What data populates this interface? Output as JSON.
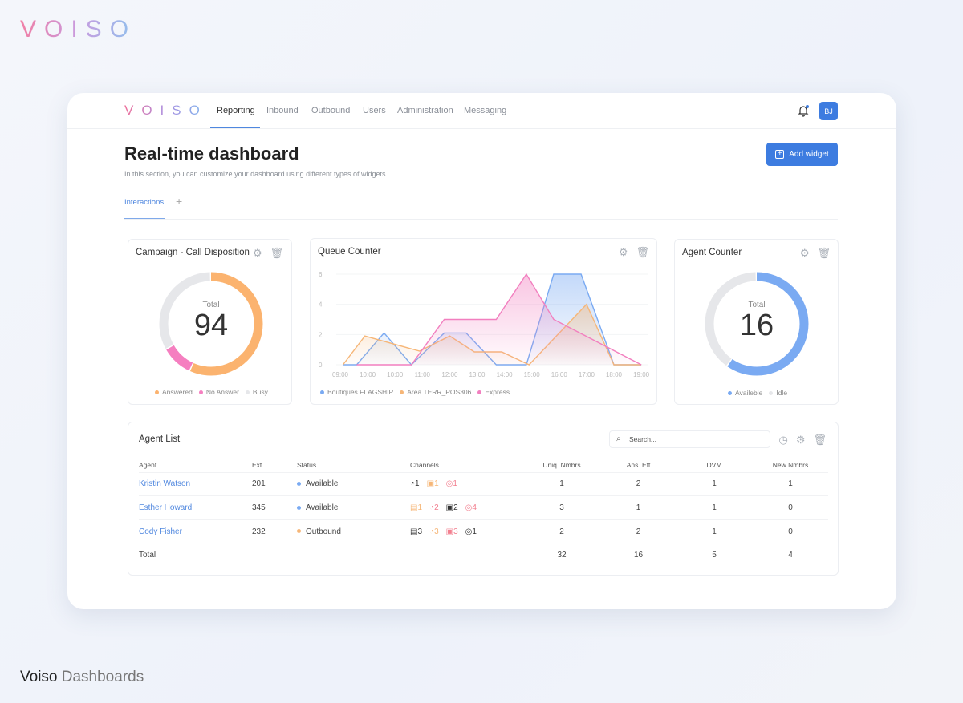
{
  "brand": {
    "logo": "VOISO",
    "caption_bold": "Voiso",
    "caption_light": " Dashboards"
  },
  "nav": {
    "items": [
      "Reporting",
      "Inbound",
      "Outbound",
      "Users",
      "Administration",
      "Messaging"
    ],
    "avatar": "BJ"
  },
  "page": {
    "title": "Real-time dashboard",
    "subtitle": "In this section, you can customize your dashboard using different types of widgets.",
    "add_widget": "Add widget",
    "tab": "Interactions",
    "tab_add": "+"
  },
  "campaign": {
    "title": "Campaign - Call Disposition",
    "total_label": "Total",
    "total": "94",
    "segments": [
      {
        "name": "Answered",
        "fraction": 0.57,
        "color": "#fbb36f"
      },
      {
        "name": "No Answer",
        "fraction": 0.1,
        "color": "#f57fc0"
      },
      {
        "name": "Busy",
        "fraction": 0.33,
        "color": "#e6e7ea"
      }
    ]
  },
  "agent_counter": {
    "title": "Agent Counter",
    "total_label": "Total",
    "total": "16",
    "segments": [
      {
        "name": "Availeble",
        "fraction": 0.6,
        "color": "#7aaaf2"
      },
      {
        "name": "Idle",
        "fraction": 0.4,
        "color": "#e6e7ea"
      }
    ]
  },
  "chart_data": {
    "type": "area",
    "title": "Queue Counter",
    "categories": [
      "09:00",
      "10:00",
      "10:00",
      "11:00",
      "12:00",
      "13:00",
      "14:00",
      "15:00",
      "16:00",
      "17:00",
      "18:00",
      "19:00"
    ],
    "yticks": [
      "0",
      "2",
      "4",
      "6"
    ],
    "ylim": [
      0,
      6.5
    ],
    "series": [
      {
        "name": "Boutiques FLAGSHIP",
        "color": "#7aaaf2",
        "points": [
          [
            0.1,
            0
          ],
          [
            0.6,
            0
          ],
          [
            1.6,
            2.1
          ],
          [
            2.6,
            0
          ],
          [
            3.8,
            2.1
          ],
          [
            4.6,
            2.1
          ],
          [
            5.7,
            0
          ],
          [
            6.8,
            0
          ],
          [
            7.8,
            6
          ],
          [
            8.8,
            6
          ],
          [
            10,
            0
          ],
          [
            11,
            0
          ]
        ]
      },
      {
        "name": "Area TERR_POS306",
        "color": "#f6b677",
        "points": [
          [
            0.1,
            0
          ],
          [
            0.9,
            1.9
          ],
          [
            2.9,
            0.9
          ],
          [
            4,
            1.9
          ],
          [
            4.9,
            0.85
          ],
          [
            5.9,
            0.85
          ],
          [
            6.9,
            0
          ],
          [
            9,
            4
          ],
          [
            10,
            0
          ],
          [
            11,
            0
          ]
        ]
      },
      {
        "name": "Express",
        "color": "#f27fbf",
        "points": [
          [
            0.6,
            0
          ],
          [
            2.6,
            0
          ],
          [
            3.8,
            3
          ],
          [
            5.7,
            3
          ],
          [
            6.8,
            6
          ],
          [
            7.8,
            3
          ],
          [
            11,
            0
          ]
        ]
      }
    ]
  },
  "agent_list": {
    "title": "Agent List",
    "search_placeholder": "Search...",
    "headers": [
      "Agent",
      "Ext",
      "Status",
      "Channels",
      "Uniq. Nmbrs",
      "Ans. Eff",
      "DVM",
      "New Nmbrs"
    ],
    "rows": [
      {
        "agent": "Kristin Watson",
        "ext": "201",
        "status": "Available",
        "status_color": "#7aaaf2",
        "channels": [
          {
            "icon": "whatsapp-icon",
            "glyph": "◔",
            "count": "1",
            "color": "#333"
          },
          {
            "icon": "instagram-icon",
            "glyph": "▣",
            "count": "1",
            "color": "#f6b677"
          },
          {
            "icon": "messenger-icon",
            "glyph": "◎",
            "count": "1",
            "color": "#f27f8f"
          }
        ],
        "uniq": "1",
        "ans": "2",
        "dvm": "1",
        "new": "1"
      },
      {
        "agent": "Esther Howard",
        "ext": "345",
        "status": "Available",
        "status_color": "#7aaaf2",
        "channels": [
          {
            "icon": "sms-icon",
            "glyph": "▤",
            "count": "1",
            "color": "#f6b677"
          },
          {
            "icon": "whatsapp-icon",
            "glyph": "◔",
            "count": "2",
            "color": "#f27f8f"
          },
          {
            "icon": "instagram-icon",
            "glyph": "▣",
            "count": "2",
            "color": "#333"
          },
          {
            "icon": "messenger-icon",
            "glyph": "◎",
            "count": "4",
            "color": "#f27f8f"
          }
        ],
        "uniq": "3",
        "ans": "1",
        "dvm": "1",
        "new": "0"
      },
      {
        "agent": "Cody Fisher",
        "ext": "232",
        "status": "Outbound",
        "status_color": "#f6b677",
        "channels": [
          {
            "icon": "sms-icon",
            "glyph": "▤",
            "count": "3",
            "color": "#333"
          },
          {
            "icon": "whatsapp-icon",
            "glyph": "◔",
            "count": "3",
            "color": "#f6b677"
          },
          {
            "icon": "instagram-icon",
            "glyph": "▣",
            "count": "3",
            "color": "#f27f8f"
          },
          {
            "icon": "messenger-icon",
            "glyph": "◎",
            "count": "1",
            "color": "#333"
          }
        ],
        "uniq": "2",
        "ans": "2",
        "dvm": "1",
        "new": "0"
      }
    ],
    "total": {
      "label": "Total",
      "uniq": "32",
      "ans": "16",
      "dvm": "5",
      "new": "4"
    }
  }
}
